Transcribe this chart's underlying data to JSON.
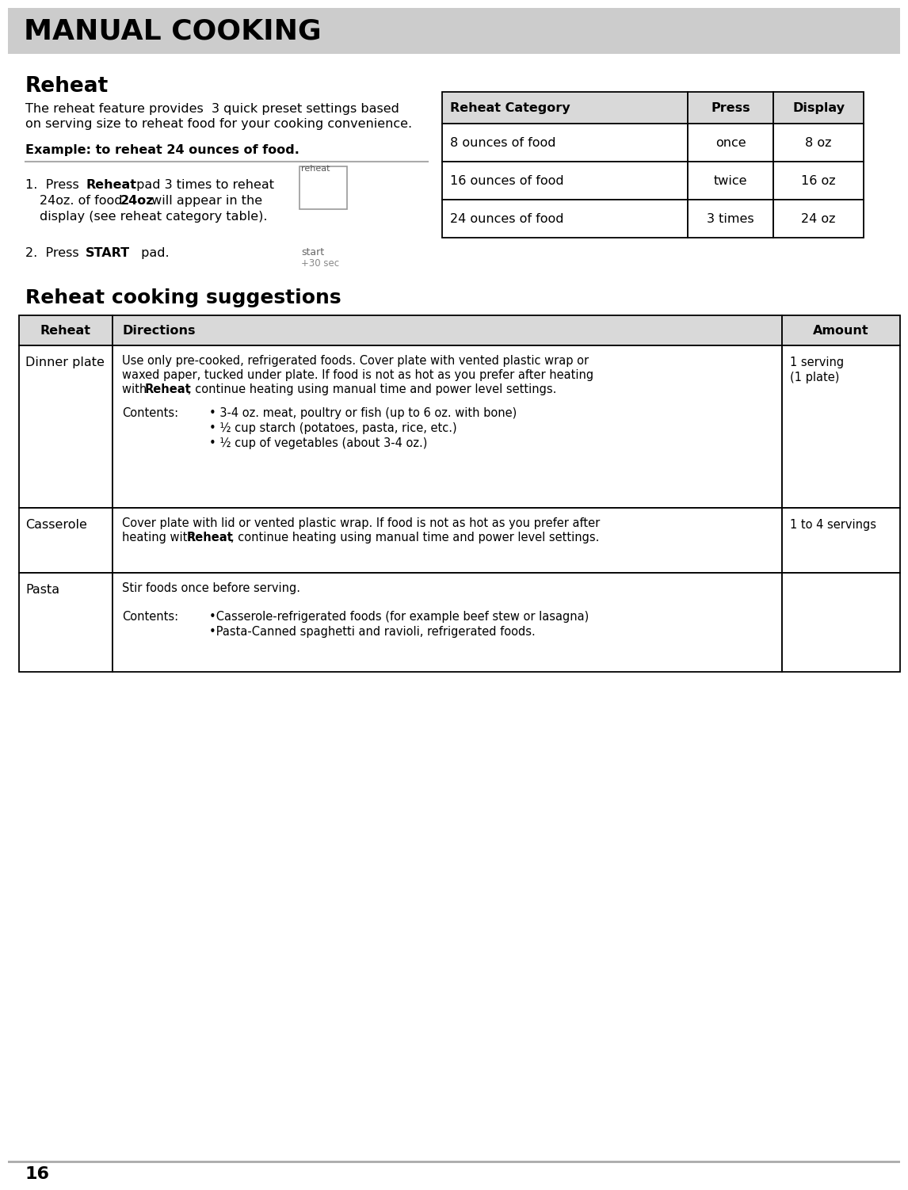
{
  "title": "MANUAL COOKING",
  "title_bg": "#cccccc",
  "page_bg": "#ffffff",
  "header_bg": "#d9d9d9",
  "section1_title": "Reheat",
  "section1_text1a": "The reheat feature provides  3 quick preset settings based",
  "section1_text1b": "on serving size to reheat food for your cooking convenience.",
  "section1_example": "Example: to reheat 24 ounces of food.",
  "reheat_table_headers": [
    "Reheat Category",
    "Press",
    "Display"
  ],
  "reheat_table_rows": [
    [
      "8 ounces of food",
      "once",
      "8 oz"
    ],
    [
      "16 ounces of food",
      "twice",
      "16 oz"
    ],
    [
      "24 ounces of food",
      "3 times",
      "24 oz"
    ]
  ],
  "section2_title": "Reheat cooking suggestions",
  "suggestions_headers": [
    "Reheat",
    "Directions",
    "Amount"
  ],
  "page_number": "16"
}
